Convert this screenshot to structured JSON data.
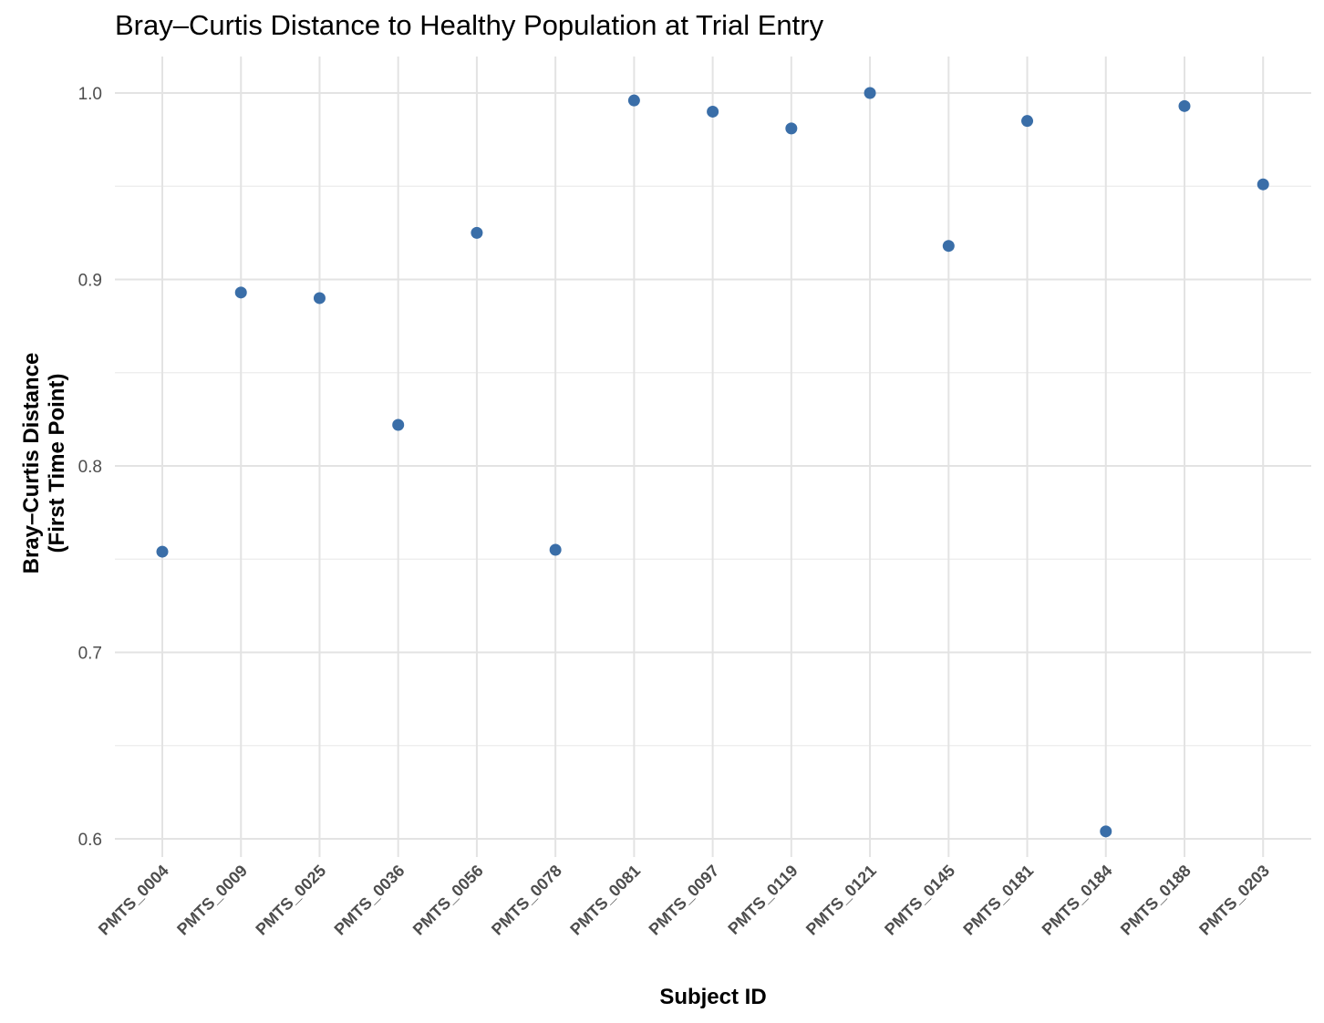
{
  "chart_data": {
    "type": "scatter",
    "title": "Bray–Curtis Distance to Healthy Population at Trial Entry",
    "xlabel": "Subject ID",
    "ylabel_lines": [
      "Bray–Curtis Distance",
      "(First Time Point)"
    ],
    "categories": [
      "PMTS_0004",
      "PMTS_0009",
      "PMTS_0025",
      "PMTS_0036",
      "PMTS_0056",
      "PMTS_0078",
      "PMTS_0081",
      "PMTS_0097",
      "PMTS_0119",
      "PMTS_0121",
      "PMTS_0145",
      "PMTS_0181",
      "PMTS_0184",
      "PMTS_0188",
      "PMTS_0203"
    ],
    "values": [
      0.754,
      0.893,
      0.89,
      0.822,
      0.925,
      0.755,
      0.996,
      0.99,
      0.981,
      1.0,
      0.918,
      0.985,
      0.604,
      0.993,
      0.951
    ],
    "ylim": [
      0.585,
      1.02
    ],
    "yticks": [
      0.6,
      0.7,
      0.8,
      0.9,
      1.0
    ],
    "ytick_labels": [
      "0.6",
      "0.7",
      "0.8",
      "0.9",
      "1.0"
    ],
    "grid": true,
    "legend": "none",
    "point_color": "#3a6ea8"
  }
}
